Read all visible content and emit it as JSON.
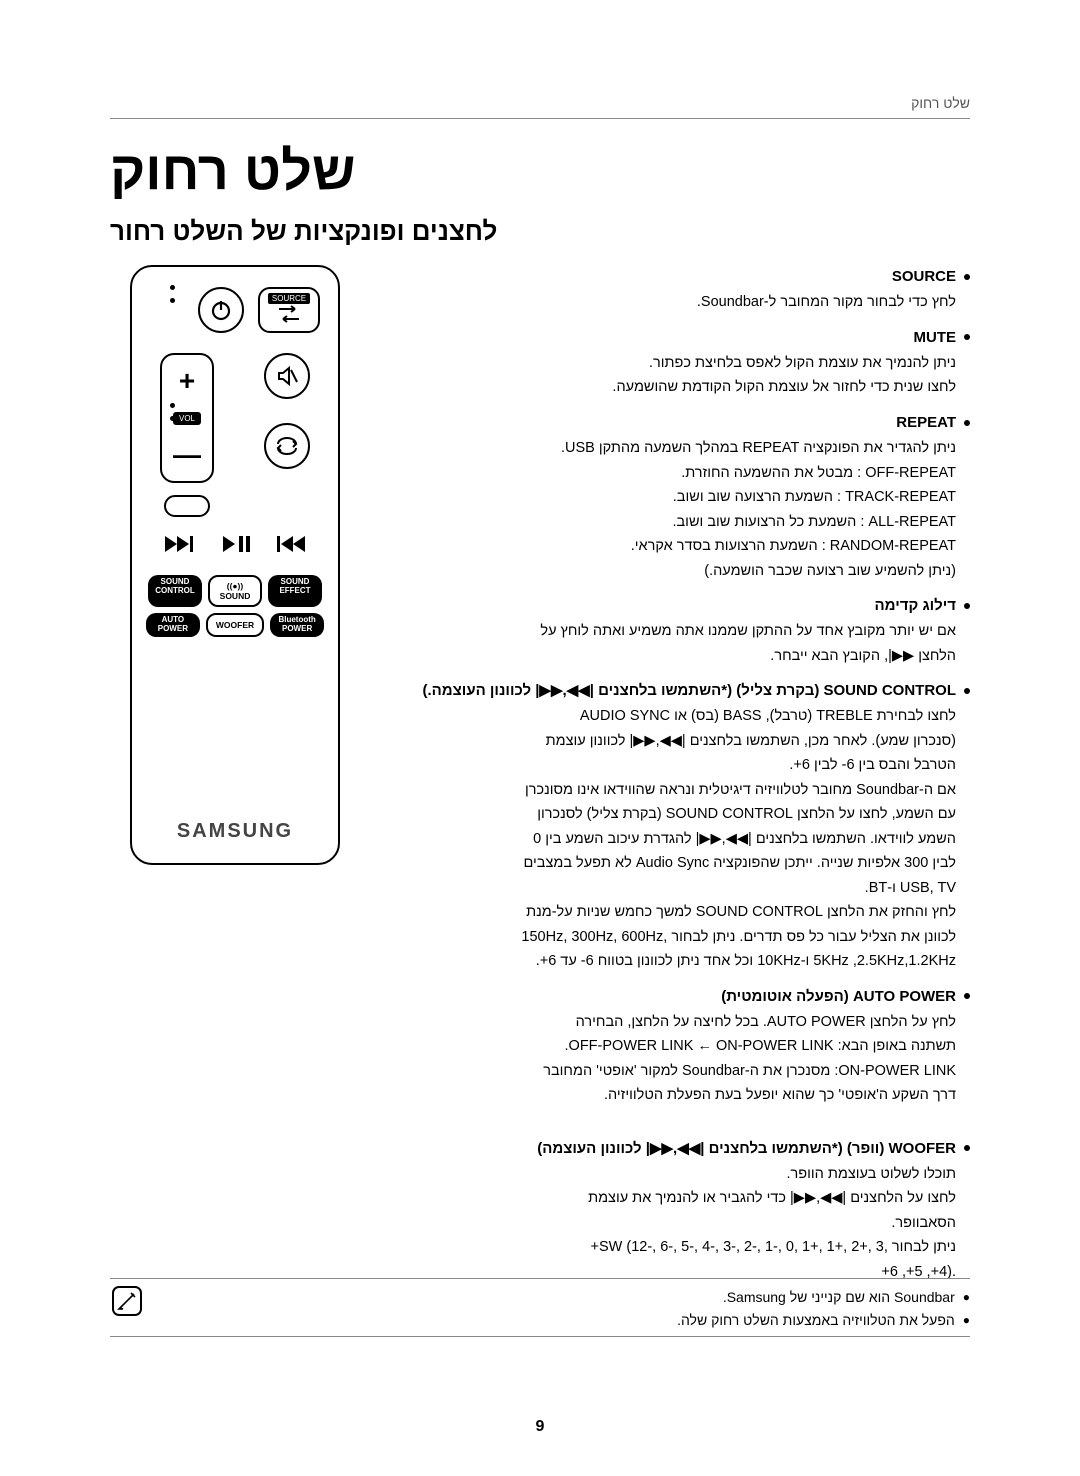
{
  "header": {
    "section_label": "שלט רחוק"
  },
  "title": "שלט רחוק",
  "subtitle": "לחצנים ופונקציות של השלט רחור",
  "remote": {
    "source_label": "SOURCE",
    "vol_label": "VOL",
    "row1": {
      "a": "SOUND\nEFFECT",
      "b": "((●))\nSOUND",
      "c": "SOUND\nCONTROL"
    },
    "row2": {
      "a": "Bluetooth\nPOWER",
      "b": "WOOFER",
      "c": "AUTO\nPOWER"
    },
    "brand": "SAMSUNG"
  },
  "sections": {
    "source": {
      "title": "SOURCE",
      "body": "לחץ כדי לבחור מקור המחובר ל-Soundbar."
    },
    "mute": {
      "title": "MUTE",
      "l1": "ניתן להנמיך את עוצמת הקול לאפס בלחיצת כפתור.",
      "l2": "לחצו שנית כדי לחזור אל עוצמת הקול הקודמת שהושמעה."
    },
    "repeat": {
      "title": "REPEAT",
      "l1": "ניתן להגדיר את הפונקציה REPEAT במהלך השמעה מהתקן USB.",
      "l2": "OFF-REPEAT : מבטל את ההשמעה החוזרת.",
      "l3": "TRACK-REPEAT : השמעת הרצועה שוב ושוב.",
      "l4": "ALL-REPEAT : השמעת כל הרצועות שוב ושוב.",
      "l5": "RANDOM-REPEAT : השמעת הרצועות בסדר אקראי.",
      "l6": "(ניתן להשמיע שוב רצועה שכבר הושמעה.)"
    },
    "skip": {
      "title": "דילוג קדימה",
      "l1": "אם יש יותר מקובץ אחד על ההתקן שממנו אתה משמיע ואתה לוחץ על",
      "l2": "הלחצן ▶▶|, הקובץ הבא ייבחר."
    },
    "soundctl": {
      "title": "SOUND CONTROL (בקרת צליל) (*השתמשו בלחצנים |◀◀,▶▶| לכוונון העוצמה.)",
      "l1": "לחצו לבחירת TREBLE (טרבל), BASS (בס) או AUDIO SYNC",
      "l2": "(סנכרון שמע). לאחר מכן, השתמשו בלחצנים |◀◀,▶▶| לכוונון עוצמת",
      "l3": "הטרבל והבס בין 6- לבין 6+.",
      "l4": "אם ה-Soundbar מחובר לטלוויזיה דיגיטלית ונראה שהווידאו אינו מסונכרן",
      "l5": "עם השמע, לחצו על הלחצן SOUND CONTROL (בקרת צליל) לסנכרון",
      "l6": "השמע לווידאו. השתמשו בלחצנים |◀◀,▶▶| להגדרת עיכוב השמע בין 0",
      "l7": "לבין 300 אלפיות שנייה. ייתכן שהפונקציה Audio Sync לא תפעל במצבים",
      "l8": "USB, TV ו-BT.",
      "l9": "לחץ והחזק את הלחצן SOUND CONTROL למשך כחמש שניות על-מנת",
      "l10": "לכוונן את הצליל עבור כל פס תדרים. ניתן לבחור ,150Hz, 300Hz, 600Hz",
      "l11": "5KHz ,2.5KHz,1.2KHz ו-10KHz וכל אחד ניתן לכוונון בטווח 6- עד 6+."
    },
    "autopower": {
      "title": "AUTO POWER (הפעלה אוטומטית)",
      "l1": "לחץ על הלחצן AUTO POWER. בכל לחיצה על הלחצן, הבחירה",
      "l2": "תשתנה באופן הבא: OFF-POWER LINK ← ON-POWER LINK.",
      "l3": "ON-POWER LINK: מסנכרן את ה-Soundbar למקור 'אופטי' המחובר",
      "l4": "דרך השקע ה'אופטי' כך שהוא יופעל בעת הפעלת הטלוויזיה."
    },
    "woofer": {
      "title": "WOOFER (וופר) (*השתמשו בלחצנים |◀◀,▶▶| לכוונון העוצמה)",
      "l1": "תוכלו לשלוט בעוצמת הוופר.",
      "l2": "לחצו על הלחצנים |◀◀,▶▶| כדי להגביר או להנמיך את עוצמת",
      "l3": "הסאבוופר.",
      "l4": "ניתן לבחור ,SW (12-, 6-, 5-, 4-, 3-, 2-, 1-, 0, 1+, 1+, 2+, 3+",
      "l5": ".(4+, 5+, 6+"
    }
  },
  "notes": {
    "n1": "Soundbar הוא שם קנייני של Samsung.",
    "n2": "הפעל את הטלוויזיה באמצעות השלט רחוק שלה."
  },
  "pagenum": "9"
}
